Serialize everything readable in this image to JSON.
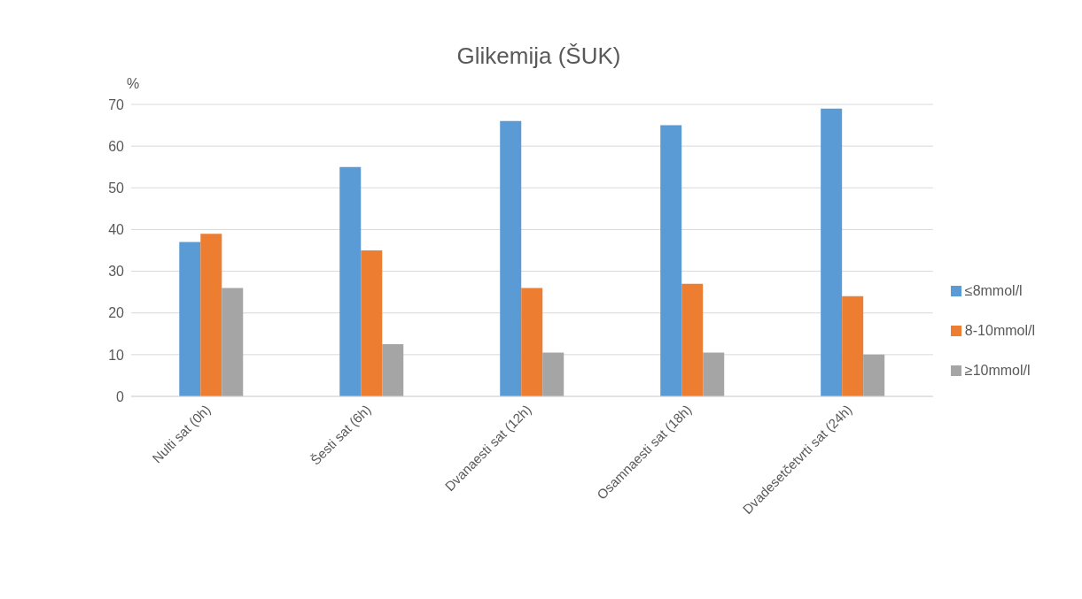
{
  "chart_data": {
    "type": "bar",
    "title": "Glikemija (ŠUK)",
    "ylabel": "%",
    "categories": [
      "Nulti sat (0h)",
      "Šesti sat (6h)",
      "Dvanaesti sat (12h)",
      "Osamnaesti sat (18h)",
      "Dvadesetčetvrti sat (24h)"
    ],
    "series": [
      {
        "name": "≤8mmol/l",
        "color": "#5b9bd5",
        "values": [
          37,
          55,
          66,
          65,
          69
        ]
      },
      {
        "name": "8-10mmol/l",
        "color": "#ed7d31",
        "values": [
          39,
          35,
          26,
          27,
          24
        ]
      },
      {
        "name": "≥10mmol/l",
        "color": "#a5a5a5",
        "values": [
          26,
          12.5,
          10.5,
          10.5,
          10
        ]
      }
    ],
    "ylim": [
      0,
      70
    ],
    "yticks": [
      0,
      10,
      20,
      30,
      40,
      50,
      60,
      70
    ],
    "grid": "y",
    "legend": "right"
  }
}
